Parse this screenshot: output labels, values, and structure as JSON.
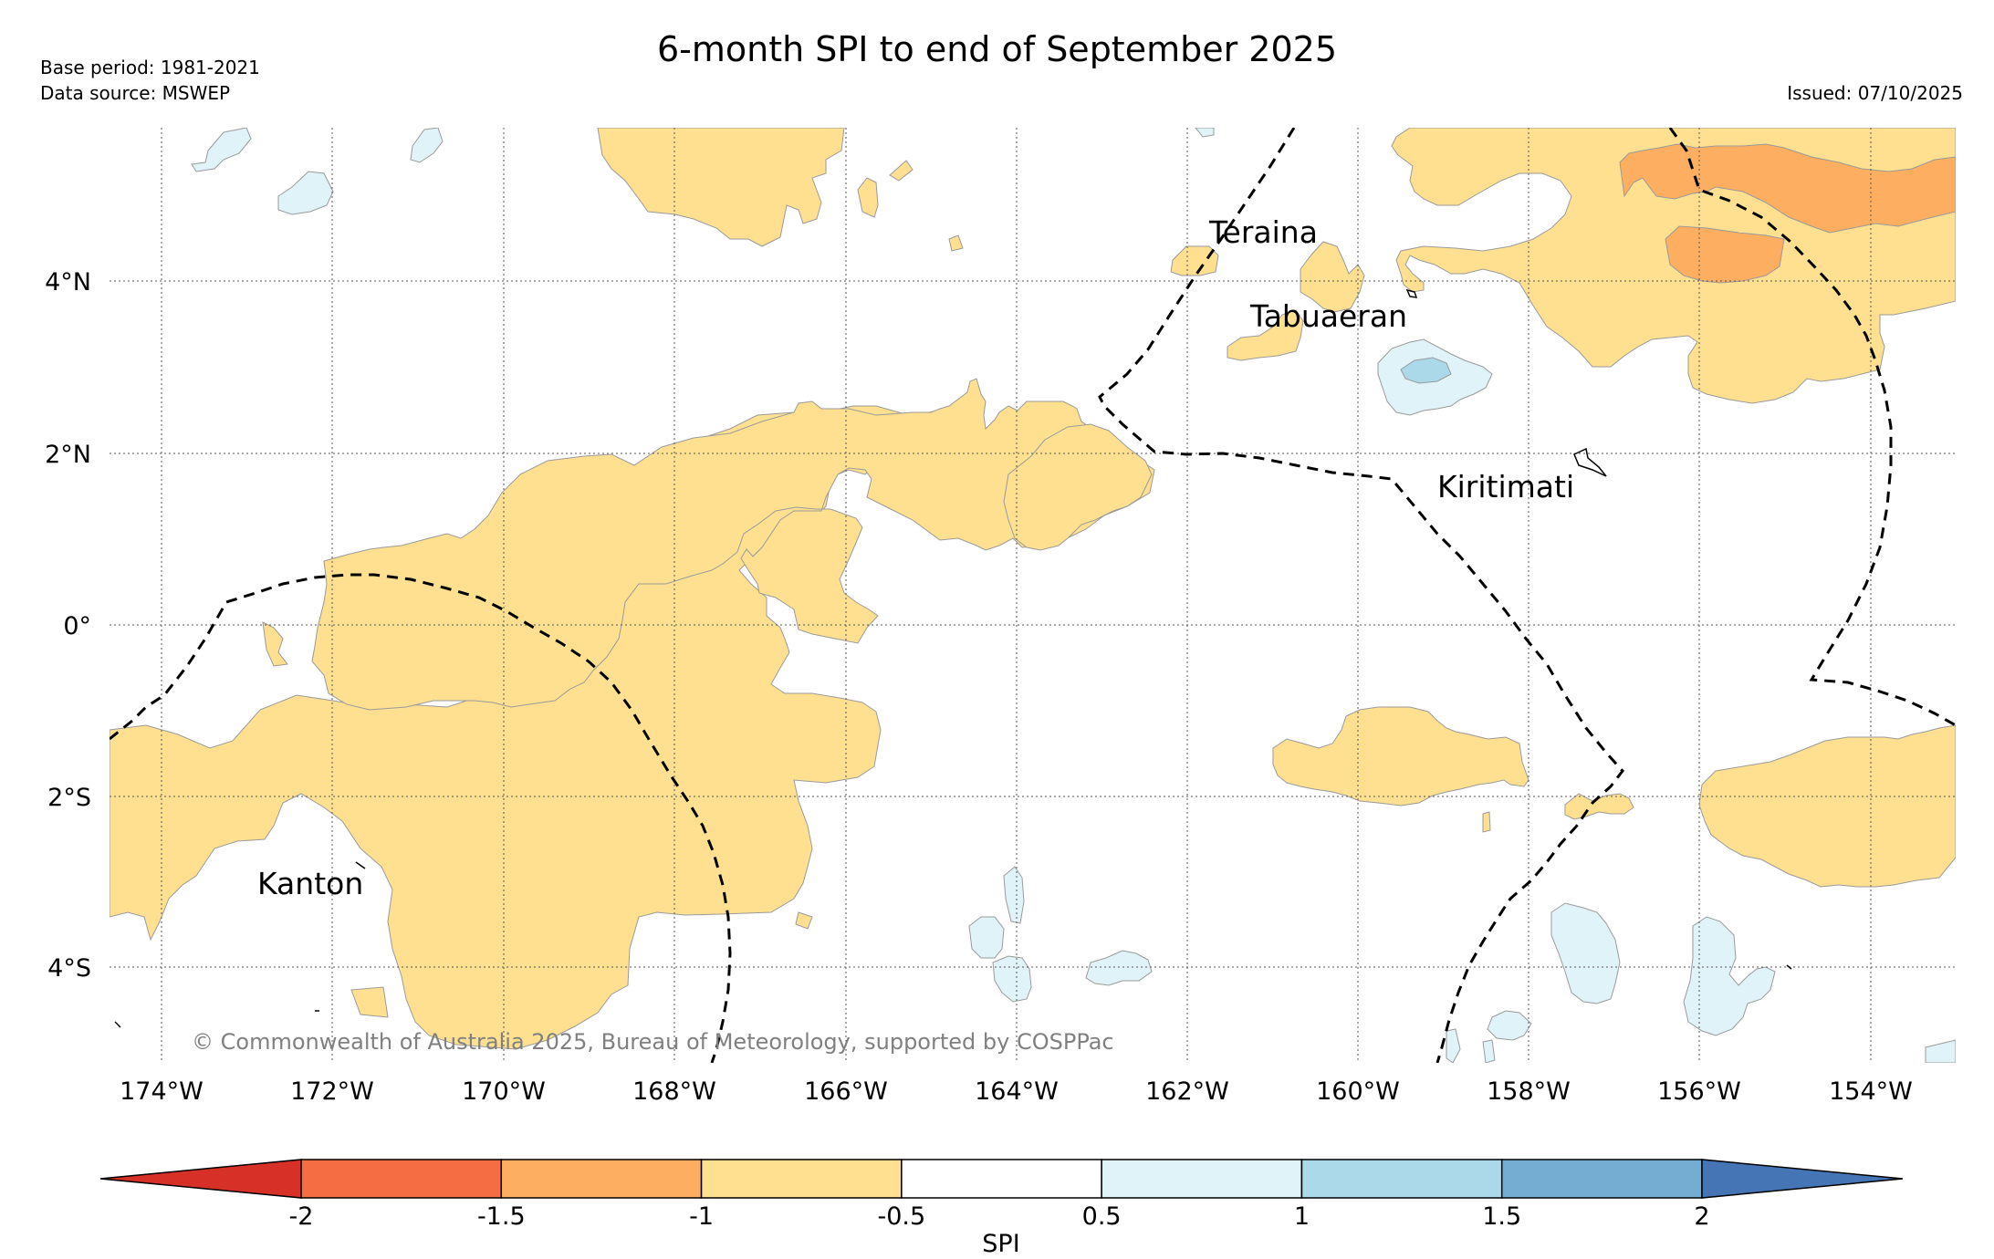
{
  "header": {
    "title": "6-month SPI to end of September 2025",
    "base_period": "Base period: 1981-2021",
    "data_source": "Data source: MSWEP",
    "issued": "Issued: 07/10/2025"
  },
  "map": {
    "lat_labels": [
      "4°N",
      "2°N",
      "0°",
      "2°S",
      "4°S"
    ],
    "lon_labels": [
      "174°W",
      "172°W",
      "170°W",
      "168°W",
      "166°W",
      "164°W",
      "162°W",
      "160°W",
      "158°W",
      "156°W",
      "154°W"
    ],
    "islands": [
      "Teraina",
      "Tabuaeran",
      "Kiritimati",
      "Kanton"
    ],
    "copyright": "© Commonwealth of Australia 2025, Bureau of Meteorology, supported by COSPPac",
    "gridlines": true,
    "boundary_style": "dashed"
  },
  "colorbar": {
    "label": "SPI",
    "ticks": [
      "-2",
      "-1.5",
      "-1",
      "-0.5",
      "0.5",
      "1",
      "1.5",
      "2"
    ],
    "colors": {
      "below_-2": "#d73027",
      "-2_to_-1.5": "#f46d43",
      "-1.5_to_-1": "#fdae61",
      "-1_to_-0.5": "#fee090",
      "-0.5_to_0.5": "#ffffff",
      "0.5_to_1": "#e0f3f8",
      "1_to_1.5": "#abd9e9",
      "1.5_to_2": "#74add1",
      "above_2": "#4575b4"
    }
  }
}
